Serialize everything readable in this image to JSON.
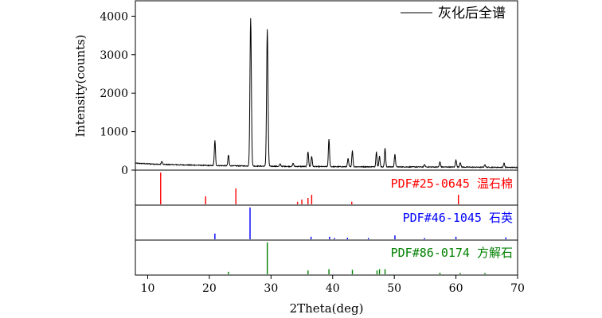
{
  "chart_data": {
    "type": "line",
    "xlabel": "2Theta(deg)",
    "ylabel": "Intensity(counts)",
    "xlim": [
      8,
      70
    ],
    "ylim": [
      0,
      4400
    ],
    "xticks": [
      10,
      20,
      30,
      40,
      50,
      60,
      70
    ],
    "yticks": [
      0,
      1000,
      2000,
      3000,
      4000
    ],
    "legend": {
      "position": "top-right",
      "label": "灰化后全谱"
    },
    "series": [
      {
        "name": "灰化后全谱",
        "color": "#000000",
        "baseline": [
          [
            8,
            180
          ],
          [
            12,
            150
          ],
          [
            20,
            120
          ],
          [
            30,
            100
          ],
          [
            40,
            90
          ],
          [
            50,
            85
          ],
          [
            60,
            80
          ],
          [
            70,
            70
          ]
        ],
        "peaks": [
          [
            12.3,
            80
          ],
          [
            20.9,
            650
          ],
          [
            23.1,
            280
          ],
          [
            26.7,
            3850
          ],
          [
            29.4,
            3550
          ],
          [
            31.5,
            60
          ],
          [
            33.6,
            80
          ],
          [
            36.0,
            390
          ],
          [
            36.6,
            270
          ],
          [
            39.4,
            720
          ],
          [
            42.5,
            210
          ],
          [
            43.2,
            420
          ],
          [
            47.1,
            390
          ],
          [
            47.6,
            280
          ],
          [
            48.5,
            480
          ],
          [
            50.1,
            320
          ],
          [
            54.9,
            60
          ],
          [
            57.4,
            130
          ],
          [
            60.0,
            190
          ],
          [
            60.7,
            120
          ],
          [
            64.7,
            70
          ],
          [
            67.8,
            110
          ]
        ]
      }
    ],
    "references": [
      {
        "label": "PDF#25-0645 温石棉",
        "color": "#ff0000",
        "lines": [
          [
            12.1,
            1.0
          ],
          [
            19.4,
            0.25
          ],
          [
            24.3,
            0.5
          ],
          [
            34.3,
            0.08
          ],
          [
            35.0,
            0.15
          ],
          [
            36.0,
            0.2
          ],
          [
            36.6,
            0.3
          ],
          [
            43.1,
            0.08
          ],
          [
            60.4,
            0.3
          ]
        ]
      },
      {
        "label": "PDF#46-1045 石英",
        "color": "#0000ff",
        "lines": [
          [
            20.9,
            0.18
          ],
          [
            26.6,
            1.0
          ],
          [
            36.5,
            0.08
          ],
          [
            39.5,
            0.08
          ],
          [
            40.3,
            0.04
          ],
          [
            42.4,
            0.05
          ],
          [
            45.8,
            0.04
          ],
          [
            50.1,
            0.12
          ],
          [
            54.9,
            0.04
          ],
          [
            60.0,
            0.08
          ],
          [
            68.1,
            0.06
          ]
        ]
      },
      {
        "label": "PDF#86-0174 方解石",
        "color": "#008000",
        "lines": [
          [
            23.1,
            0.08
          ],
          [
            29.4,
            1.0
          ],
          [
            36.0,
            0.12
          ],
          [
            39.4,
            0.16
          ],
          [
            43.2,
            0.14
          ],
          [
            47.2,
            0.12
          ],
          [
            47.6,
            0.16
          ],
          [
            48.5,
            0.16
          ],
          [
            57.4,
            0.05
          ],
          [
            60.7,
            0.04
          ],
          [
            64.7,
            0.04
          ]
        ]
      }
    ]
  }
}
